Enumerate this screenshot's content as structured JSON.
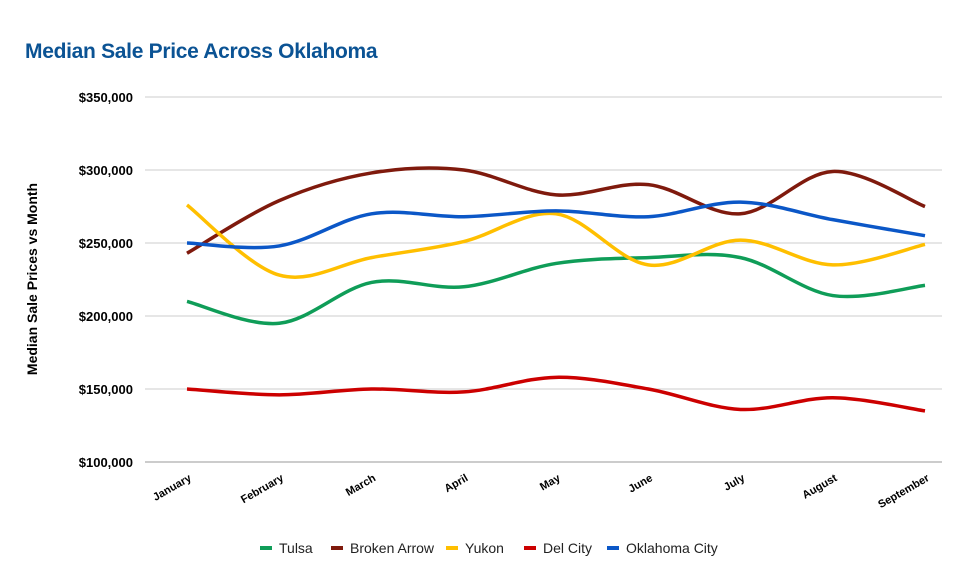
{
  "chart_data": {
    "type": "line",
    "title": "Median Sale Price Across Oklahoma",
    "xlabel": "",
    "ylabel": "Median Sale Prices vs Month",
    "categories": [
      "January",
      "February",
      "March",
      "April",
      "May",
      "June",
      "July",
      "August",
      "September"
    ],
    "ylim": [
      100000,
      350000
    ],
    "yticks": [
      100000,
      150000,
      200000,
      250000,
      300000,
      350000
    ],
    "ytick_labels": [
      "$100,000",
      "$150,000",
      "$200,000",
      "$250,000",
      "$300,000",
      "$350,000"
    ],
    "grid": true,
    "smooth": true,
    "legend_position": "bottom",
    "series": [
      {
        "name": "Tulsa",
        "color": "#0f9d58",
        "values": [
          210000,
          195000,
          223000,
          220000,
          236000,
          240000,
          240000,
          214000,
          221000
        ]
      },
      {
        "name": "Broken Arrow",
        "color": "#7f1a0d",
        "values": [
          243000,
          279000,
          298000,
          300000,
          283000,
          290000,
          270000,
          299000,
          275000
        ]
      },
      {
        "name": "Yukon",
        "color": "#ffbf00",
        "values": [
          276000,
          228000,
          240000,
          251000,
          270000,
          235000,
          252000,
          235000,
          249000
        ]
      },
      {
        "name": "Del City",
        "color": "#cc0000",
        "values": [
          150000,
          146000,
          150000,
          148000,
          158000,
          150000,
          136000,
          144000,
          135000
        ]
      },
      {
        "name": "Oklahoma City",
        "color": "#0b57c7",
        "values": [
          250000,
          248000,
          270000,
          268000,
          272000,
          268000,
          278000,
          266000,
          255000
        ]
      }
    ]
  }
}
